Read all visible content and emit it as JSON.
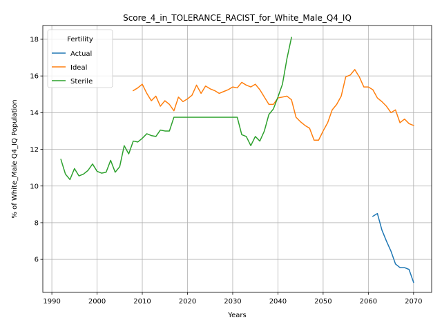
{
  "chart_data": {
    "type": "line",
    "title": "Score_4_in_TOLERANCE_RACIST_for_White_Male_Q4_IQ",
    "xlabel": "Years",
    "ylabel": "% of White_Male Q4_IQ Population",
    "xlim": [
      1988,
      2074
    ],
    "ylim": [
      4.2,
      18.75
    ],
    "xticks": [
      1990,
      2000,
      2010,
      2020,
      2030,
      2040,
      2050,
      2060,
      2070
    ],
    "yticks": [
      6,
      8,
      10,
      12,
      14,
      16,
      18
    ],
    "grid": true,
    "legend": {
      "title": "Fertility",
      "placement": "top-left"
    },
    "series": [
      {
        "name": "Actual",
        "color": "#1f77b4",
        "x": [
          2061,
          2062,
          2063,
          2064,
          2065,
          2066,
          2067,
          2068,
          2069,
          2070
        ],
        "y": [
          8.35,
          8.5,
          7.6,
          7.0,
          6.45,
          5.75,
          5.55,
          5.55,
          5.45,
          4.75
        ]
      },
      {
        "name": "Ideal",
        "color": "#ff7f0e",
        "x": [
          2008,
          2009,
          2010,
          2011,
          2012,
          2013,
          2014,
          2015,
          2016,
          2017,
          2018,
          2019,
          2020,
          2021,
          2022,
          2023,
          2024,
          2025,
          2026,
          2027,
          2028,
          2029,
          2030,
          2031,
          2032,
          2033,
          2034,
          2035,
          2036,
          2037,
          2038,
          2039,
          2040,
          2041,
          2042,
          2043,
          2044,
          2045,
          2046,
          2047,
          2048,
          2049,
          2050,
          2051,
          2052,
          2053,
          2054,
          2055,
          2056,
          2057,
          2058,
          2059,
          2060,
          2061,
          2062,
          2063,
          2064,
          2065,
          2066,
          2067,
          2068,
          2069,
          2070
        ],
        "y": [
          15.2,
          15.35,
          15.55,
          15.05,
          14.65,
          14.9,
          14.35,
          14.65,
          14.45,
          14.1,
          14.85,
          14.6,
          14.75,
          14.95,
          15.5,
          15.05,
          15.45,
          15.3,
          15.2,
          15.05,
          15.15,
          15.25,
          15.4,
          15.35,
          15.65,
          15.5,
          15.4,
          15.55,
          15.25,
          14.85,
          14.45,
          14.45,
          14.8,
          14.85,
          14.9,
          14.7,
          13.75,
          13.5,
          13.3,
          13.15,
          12.5,
          12.5,
          13.0,
          13.45,
          14.15,
          14.45,
          14.9,
          15.95,
          16.05,
          16.35,
          15.95,
          15.4,
          15.4,
          15.25,
          14.8,
          14.6,
          14.35,
          14.0,
          14.15,
          13.45,
          13.65,
          13.4,
          13.3
        ]
      },
      {
        "name": "Sterile",
        "color": "#2ca02c",
        "x": [
          1992,
          1993,
          1994,
          1995,
          1996,
          1997,
          1998,
          1999,
          2000,
          2001,
          2002,
          2003,
          2004,
          2005,
          2006,
          2007,
          2008,
          2009,
          2010,
          2011,
          2012,
          2013,
          2014,
          2015,
          2016,
          2017,
          2018,
          2019,
          2020,
          2021,
          2022,
          2023,
          2024,
          2025,
          2026,
          2027,
          2028,
          2029,
          2030,
          2031,
          2032,
          2033,
          2034,
          2035,
          2036,
          2037,
          2038,
          2039,
          2040,
          2041,
          2042,
          2043
        ],
        "y": [
          11.45,
          10.65,
          10.35,
          10.95,
          10.55,
          10.65,
          10.85,
          11.2,
          10.8,
          10.7,
          10.75,
          11.4,
          10.75,
          11.05,
          12.2,
          11.75,
          12.45,
          12.4,
          12.6,
          12.85,
          12.75,
          12.7,
          13.05,
          13.0,
          13.0,
          13.75,
          13.75,
          13.75,
          13.75,
          13.75,
          13.75,
          13.75,
          13.75,
          13.75,
          13.75,
          13.75,
          13.75,
          13.75,
          13.75,
          13.75,
          12.8,
          12.7,
          12.2,
          12.7,
          12.45,
          13.0,
          13.9,
          14.2,
          14.85,
          15.55,
          16.95,
          18.1
        ]
      }
    ]
  }
}
